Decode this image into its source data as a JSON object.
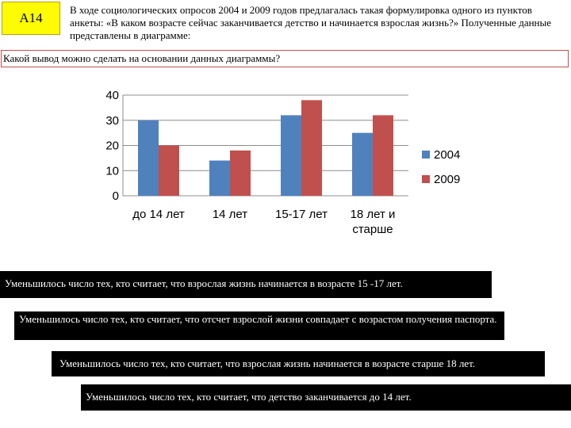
{
  "badge": "А14",
  "intro": "В ходе социологических опросов 2004 и 2009 годов предлагалась такая формулировка одного из пунктов анкеты: «В каком возрасте сейчас заканчивается детство и начинается взрослая жизнь?» Полученные данные представлены в диаграмме:",
  "question": "Какой вывод можно сделать на основании данных диаграммы?",
  "answers": [
    "Уменьшилось число тех, кто считает, что взрослая жизнь начинается в возрасте 15 -17 лет.",
    "Уменьшилось число тех, кто считает, что отсчет взрослой жизни совпадает с возрастом получения паспорта.",
    "Уменьшилось число тех, кто считает, что взрослая жизнь начинается в возрасте старше 18 лет.",
    "Уменьшилось число тех, кто считает, что детство заканчивается до 14 лет."
  ],
  "chart_data": {
    "type": "bar",
    "categories": [
      "до 14 лет",
      "14 лет",
      "15-17 лет",
      "18 лет и старше"
    ],
    "series": [
      {
        "name": "2004",
        "values": [
          30,
          14,
          32,
          25
        ],
        "color": "#4f81bd"
      },
      {
        "name": "2009",
        "values": [
          20,
          18,
          38,
          32
        ],
        "color": "#c0504d"
      }
    ],
    "ylim": [
      0,
      40
    ],
    "yticks": [
      0,
      10,
      20,
      30,
      40
    ],
    "grid": true,
    "legend": "right"
  }
}
